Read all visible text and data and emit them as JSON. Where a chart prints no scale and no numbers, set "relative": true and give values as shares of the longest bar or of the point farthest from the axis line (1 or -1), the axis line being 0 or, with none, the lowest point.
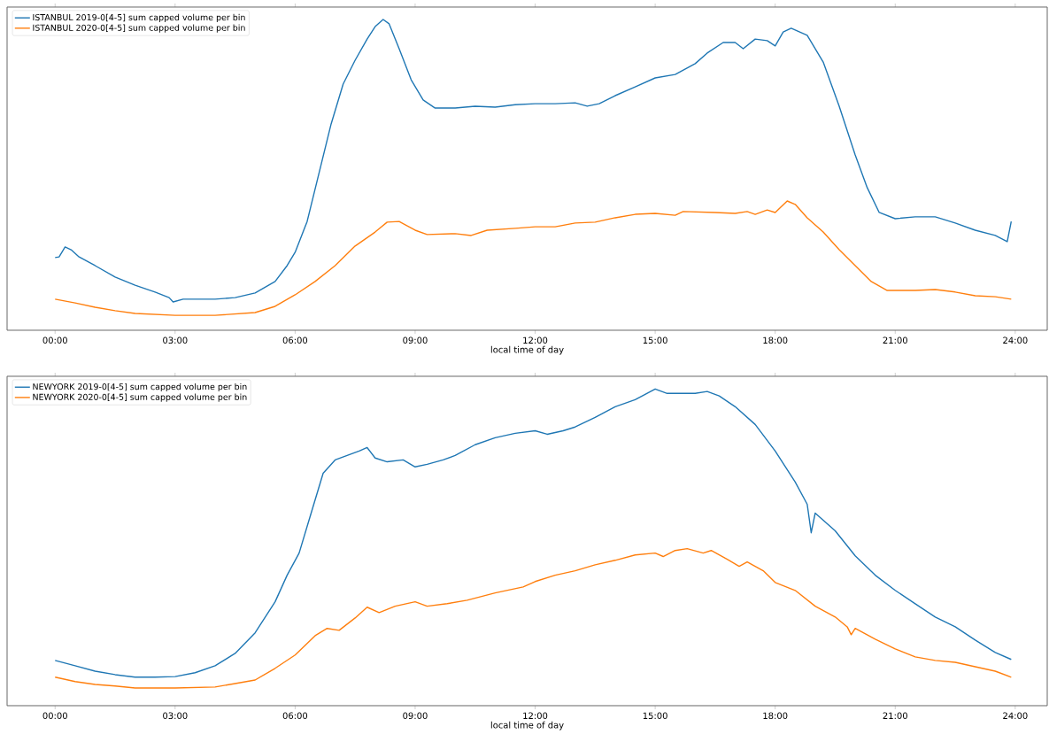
{
  "chart_data": [
    {
      "type": "line",
      "relative": true,
      "xlabel": "local time of day",
      "legend": "top left",
      "xlim": [
        -1.2,
        24.8
      ],
      "xticks": [
        {
          "value": 0,
          "label": "00:00"
        },
        {
          "value": 3,
          "label": "03:00"
        },
        {
          "value": 6,
          "label": "06:00"
        },
        {
          "value": 9,
          "label": "09:00"
        },
        {
          "value": 12,
          "label": "12:00"
        },
        {
          "value": 15,
          "label": "15:00"
        },
        {
          "value": 18,
          "label": "18:00"
        },
        {
          "value": 21,
          "label": "21:00"
        },
        {
          "value": 24,
          "label": "24:00"
        }
      ],
      "series": [
        {
          "name": "ISTANBUL 2019-0[4-5] sum capped volume per bin",
          "color": "#1f77b4",
          "x": [
            0,
            0.1,
            0.25,
            0.4,
            0.6,
            1,
            1.5,
            2,
            2.5,
            2.85,
            2.95,
            3.2,
            4,
            4.5,
            5,
            5.5,
            5.8,
            6,
            6.3,
            6.6,
            6.9,
            7.2,
            7.5,
            7.8,
            8.0,
            8.2,
            8.35,
            8.6,
            8.9,
            9.2,
            9.5,
            10,
            10.5,
            11,
            11.5,
            12,
            12.5,
            13,
            13.3,
            13.6,
            14,
            14.5,
            15,
            15.5,
            16,
            16.3,
            16.7,
            17,
            17.2,
            17.5,
            17.8,
            18,
            18.2,
            18.4,
            18.8,
            19.2,
            19.6,
            20,
            20.3,
            20.6,
            21,
            21.5,
            22,
            22.5,
            23,
            23.5,
            23.8,
            23.9
          ],
          "values": [
            0.234,
            0.236,
            0.268,
            0.259,
            0.236,
            0.208,
            0.171,
            0.145,
            0.123,
            0.105,
            0.091,
            0.1,
            0.1,
            0.105,
            0.12,
            0.157,
            0.208,
            0.251,
            0.35,
            0.507,
            0.664,
            0.792,
            0.869,
            0.937,
            0.977,
            1.0,
            0.986,
            0.906,
            0.806,
            0.741,
            0.715,
            0.715,
            0.721,
            0.718,
            0.726,
            0.729,
            0.729,
            0.732,
            0.721,
            0.729,
            0.755,
            0.783,
            0.812,
            0.823,
            0.858,
            0.892,
            0.926,
            0.926,
            0.906,
            0.937,
            0.932,
            0.915,
            0.96,
            0.972,
            0.949,
            0.863,
            0.721,
            0.564,
            0.459,
            0.379,
            0.359,
            0.365,
            0.365,
            0.345,
            0.322,
            0.305,
            0.285,
            0.35
          ]
        },
        {
          "name": "ISTANBUL 2020-0[4-5] sum capped volume per bin",
          "color": "#ff7f0e",
          "x": [
            0,
            0.5,
            1,
            1.5,
            2,
            3,
            4,
            5,
            5.5,
            6,
            6.5,
            7,
            7.5,
            8,
            8.3,
            8.6,
            9.0,
            9.3,
            10,
            10.4,
            10.8,
            11.5,
            12,
            12.5,
            13,
            13.5,
            14,
            14.5,
            15,
            15.5,
            15.7,
            16.5,
            17,
            17.3,
            17.5,
            17.8,
            18,
            18.3,
            18.5,
            18.8,
            19.2,
            19.6,
            20,
            20.4,
            20.8,
            21.5,
            22,
            22.5,
            23,
            23.5,
            23.9
          ],
          "values": [
            0.1,
            0.088,
            0.074,
            0.063,
            0.054,
            0.048,
            0.048,
            0.057,
            0.077,
            0.114,
            0.157,
            0.208,
            0.271,
            0.316,
            0.348,
            0.35,
            0.322,
            0.308,
            0.311,
            0.305,
            0.322,
            0.328,
            0.333,
            0.333,
            0.345,
            0.348,
            0.362,
            0.373,
            0.376,
            0.37,
            0.382,
            0.379,
            0.376,
            0.382,
            0.373,
            0.387,
            0.379,
            0.416,
            0.405,
            0.362,
            0.316,
            0.259,
            0.208,
            0.157,
            0.128,
            0.128,
            0.131,
            0.123,
            0.111,
            0.108,
            0.1
          ]
        }
      ]
    },
    {
      "type": "line",
      "relative": true,
      "xlabel": "local time of day",
      "legend": "top left",
      "xlim": [
        -1.2,
        24.8
      ],
      "xticks": [
        {
          "value": 0,
          "label": "00:00"
        },
        {
          "value": 3,
          "label": "03:00"
        },
        {
          "value": 6,
          "label": "06:00"
        },
        {
          "value": 9,
          "label": "09:00"
        },
        {
          "value": 12,
          "label": "12:00"
        },
        {
          "value": 15,
          "label": "15:00"
        },
        {
          "value": 18,
          "label": "18:00"
        },
        {
          "value": 21,
          "label": "21:00"
        },
        {
          "value": 24,
          "label": "24:00"
        }
      ],
      "series": [
        {
          "name": "NEWYORK 2019-0[4-5] sum capped volume per bin",
          "color": "#1f77b4",
          "x": [
            0,
            0.5,
            1,
            1.5,
            2,
            2.5,
            3,
            3.5,
            4,
            4.5,
            5,
            5.5,
            5.8,
            6.1,
            6.4,
            6.7,
            7,
            7.3,
            7.6,
            7.8,
            8.0,
            8.3,
            8.7,
            9.0,
            9.3,
            9.7,
            10,
            10.5,
            11,
            11.5,
            12,
            12.3,
            12.7,
            13,
            13.5,
            14,
            14.5,
            15.0,
            15.3,
            16,
            16.3,
            16.6,
            17,
            17.5,
            18,
            18.5,
            18.8,
            18.9,
            19.0,
            19.5,
            20,
            20.5,
            21,
            21.5,
            22,
            22.5,
            23,
            23.5,
            23.9
          ],
          "values": [
            0.143,
            0.126,
            0.109,
            0.098,
            0.09,
            0.09,
            0.092,
            0.104,
            0.126,
            0.165,
            0.23,
            0.328,
            0.412,
            0.482,
            0.608,
            0.734,
            0.776,
            0.79,
            0.804,
            0.815,
            0.782,
            0.77,
            0.776,
            0.754,
            0.762,
            0.776,
            0.79,
            0.824,
            0.846,
            0.86,
            0.868,
            0.857,
            0.868,
            0.88,
            0.91,
            0.944,
            0.966,
            1.0,
            0.986,
            0.986,
            0.992,
            0.978,
            0.944,
            0.888,
            0.804,
            0.706,
            0.636,
            0.546,
            0.608,
            0.552,
            0.473,
            0.412,
            0.364,
            0.322,
            0.28,
            0.249,
            0.207,
            0.168,
            0.146
          ]
        },
        {
          "name": "NEWYORK 2020-0[4-5] sum capped volume per bin",
          "color": "#ff7f0e",
          "x": [
            0,
            0.5,
            1,
            1.5,
            2,
            3,
            4,
            4.5,
            5,
            5.5,
            6,
            6.5,
            6.8,
            7.1,
            7.5,
            7.8,
            8.1,
            8.5,
            9,
            9.3,
            9.8,
            10.3,
            11,
            11.7,
            12,
            12.5,
            13,
            13.5,
            14,
            14.5,
            15,
            15.2,
            15.5,
            15.8,
            16.2,
            16.4,
            16.8,
            17.1,
            17.3,
            17.7,
            18,
            18.5,
            19,
            19.5,
            19.8,
            19.9,
            20.0,
            20.5,
            21,
            21.5,
            22,
            22.5,
            23,
            23.5,
            23.9
          ],
          "values": [
            0.09,
            0.076,
            0.067,
            0.062,
            0.056,
            0.056,
            0.059,
            0.07,
            0.081,
            0.118,
            0.16,
            0.221,
            0.244,
            0.238,
            0.277,
            0.311,
            0.294,
            0.314,
            0.328,
            0.314,
            0.322,
            0.333,
            0.356,
            0.375,
            0.392,
            0.412,
            0.426,
            0.445,
            0.459,
            0.476,
            0.482,
            0.471,
            0.49,
            0.496,
            0.482,
            0.49,
            0.462,
            0.44,
            0.454,
            0.426,
            0.389,
            0.364,
            0.314,
            0.28,
            0.249,
            0.224,
            0.244,
            0.21,
            0.179,
            0.154,
            0.143,
            0.137,
            0.123,
            0.109,
            0.09
          ]
        }
      ]
    }
  ]
}
